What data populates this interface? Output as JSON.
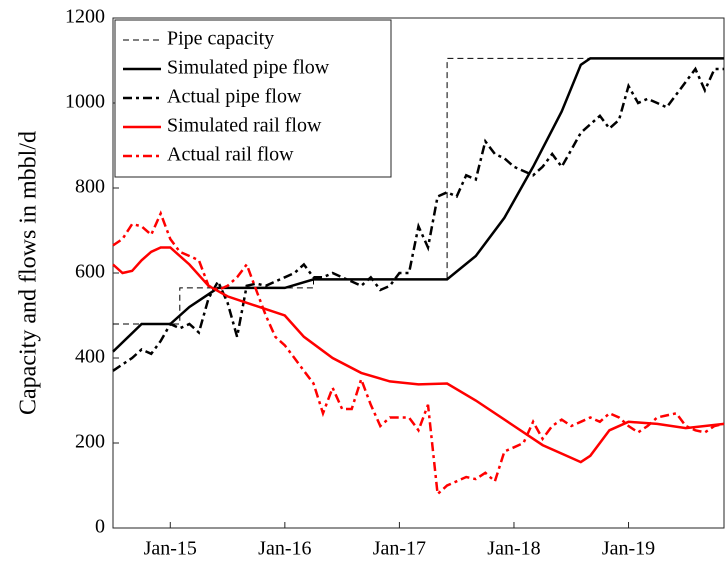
{
  "chart_data": {
    "type": "line",
    "ylabel": "Capacity and flows in mbbl/d",
    "xlim": [
      "2014-07",
      "2019-11"
    ],
    "ylim": [
      0,
      1200
    ],
    "yticks": [
      0,
      200,
      400,
      600,
      800,
      1000,
      1200
    ],
    "xticks": [
      {
        "value": "2015-01",
        "label": "Jan-15"
      },
      {
        "value": "2016-01",
        "label": "Jan-16"
      },
      {
        "value": "2017-01",
        "label": "Jan-17"
      },
      {
        "value": "2018-01",
        "label": "Jan-18"
      },
      {
        "value": "2019-01",
        "label": "Jan-19"
      }
    ],
    "legend": "upper left",
    "series": [
      {
        "name": "Pipe capacity",
        "color": "#000000",
        "dash": "dashed",
        "width": 1,
        "x": [
          "2014-07",
          "2015-02",
          "2015-02",
          "2016-04",
          "2016-04",
          "2017-06",
          "2017-06",
          "2019-11"
        ],
        "values": [
          480,
          480,
          565,
          565,
          585,
          585,
          1105,
          1105
        ]
      },
      {
        "name": "Simulated pipe flow",
        "color": "#000000",
        "dash": "solid",
        "width": 2.5,
        "x": [
          "2014-07",
          "2014-10",
          "2015-01",
          "2015-03",
          "2015-06",
          "2016-01",
          "2016-04",
          "2017-06",
          "2017-09",
          "2017-12",
          "2018-03",
          "2018-06",
          "2018-08",
          "2018-09",
          "2019-11"
        ],
        "values": [
          415,
          480,
          480,
          520,
          565,
          565,
          585,
          585,
          640,
          730,
          850,
          980,
          1090,
          1105,
          1105
        ]
      },
      {
        "name": "Actual pipe flow",
        "color": "#000000",
        "dash": "dashdot",
        "width": 2.5,
        "x": [
          "2014-07",
          "2014-08",
          "2014-09",
          "2014-10",
          "2014-11",
          "2014-12",
          "2015-01",
          "2015-02",
          "2015-03",
          "2015-04",
          "2015-05",
          "2015-06",
          "2015-07",
          "2015-08",
          "2015-09",
          "2015-10",
          "2015-11",
          "2015-12",
          "2016-01",
          "2016-02",
          "2016-03",
          "2016-04",
          "2016-05",
          "2016-06",
          "2016-07",
          "2016-08",
          "2016-09",
          "2016-10",
          "2016-11",
          "2016-12",
          "2017-01",
          "2017-02",
          "2017-03",
          "2017-04",
          "2017-05",
          "2017-06",
          "2017-07",
          "2017-08",
          "2017-09",
          "2017-10",
          "2017-11",
          "2017-12",
          "2018-01",
          "2018-02",
          "2018-03",
          "2018-04",
          "2018-05",
          "2018-06",
          "2018-07",
          "2018-08",
          "2018-09",
          "2018-10",
          "2018-11",
          "2018-12",
          "2019-01",
          "2019-02",
          "2019-03",
          "2019-04",
          "2019-05",
          "2019-06",
          "2019-07",
          "2019-08",
          "2019-09",
          "2019-10",
          "2019-11"
        ],
        "values": [
          370,
          385,
          400,
          420,
          410,
          440,
          480,
          470,
          480,
          460,
          540,
          580,
          530,
          450,
          570,
          575,
          570,
          580,
          590,
          600,
          620,
          590,
          590,
          600,
          590,
          580,
          570,
          590,
          560,
          570,
          600,
          600,
          710,
          660,
          780,
          790,
          780,
          830,
          820,
          910,
          880,
          870,
          850,
          840,
          830,
          850,
          880,
          850,
          890,
          930,
          950,
          970,
          940,
          960,
          1040,
          1000,
          1010,
          1000,
          990,
          1020,
          1050,
          1080,
          1030,
          1080,
          1080
        ]
      },
      {
        "name": "Simulated rail flow",
        "color": "#ff0000",
        "dash": "solid",
        "width": 2.5,
        "x": [
          "2014-07",
          "2014-08",
          "2014-09",
          "2014-10",
          "2014-11",
          "2014-12",
          "2015-01",
          "2015-03",
          "2015-05",
          "2015-07",
          "2015-09",
          "2016-01",
          "2016-03",
          "2016-06",
          "2016-09",
          "2016-12",
          "2017-03",
          "2017-06",
          "2017-09",
          "2018-01",
          "2018-04",
          "2018-07",
          "2018-08",
          "2018-09",
          "2018-11",
          "2019-01",
          "2019-04",
          "2019-07",
          "2019-11"
        ],
        "values": [
          620,
          600,
          605,
          630,
          650,
          660,
          660,
          620,
          570,
          545,
          530,
          500,
          450,
          400,
          365,
          345,
          338,
          340,
          300,
          240,
          195,
          165,
          155,
          170,
          230,
          250,
          245,
          235,
          245
        ]
      },
      {
        "name": "Actual rail flow",
        "color": "#ff0000",
        "dash": "dashdot",
        "width": 2.5,
        "x": [
          "2014-07",
          "2014-08",
          "2014-09",
          "2014-10",
          "2014-11",
          "2014-12",
          "2015-01",
          "2015-02",
          "2015-03",
          "2015-04",
          "2015-05",
          "2015-06",
          "2015-07",
          "2015-08",
          "2015-09",
          "2015-10",
          "2015-11",
          "2015-12",
          "2016-01",
          "2016-02",
          "2016-03",
          "2016-04",
          "2016-05",
          "2016-06",
          "2016-07",
          "2016-08",
          "2016-09",
          "2016-10",
          "2016-11",
          "2016-12",
          "2017-01",
          "2017-02",
          "2017-03",
          "2017-04",
          "2017-05",
          "2017-06",
          "2017-07",
          "2017-08",
          "2017-09",
          "2017-10",
          "2017-11",
          "2017-12",
          "2018-01",
          "2018-02",
          "2018-03",
          "2018-04",
          "2018-05",
          "2018-06",
          "2018-07",
          "2018-08",
          "2018-09",
          "2018-10",
          "2018-11",
          "2018-12",
          "2019-01",
          "2019-02",
          "2019-03",
          "2019-04",
          "2019-05",
          "2019-06",
          "2019-07",
          "2019-08",
          "2019-09",
          "2019-10",
          "2019-11"
        ],
        "values": [
          665,
          680,
          715,
          710,
          690,
          740,
          680,
          650,
          640,
          630,
          570,
          560,
          570,
          590,
          620,
          560,
          500,
          450,
          430,
          400,
          370,
          340,
          270,
          330,
          280,
          280,
          350,
          290,
          240,
          260,
          260,
          260,
          230,
          290,
          80,
          100,
          110,
          120,
          115,
          130,
          110,
          180,
          190,
          200,
          250,
          210,
          240,
          255,
          240,
          250,
          260,
          250,
          270,
          260,
          240,
          225,
          240,
          260,
          265,
          270,
          240,
          230,
          225,
          240,
          245
        ]
      }
    ]
  }
}
